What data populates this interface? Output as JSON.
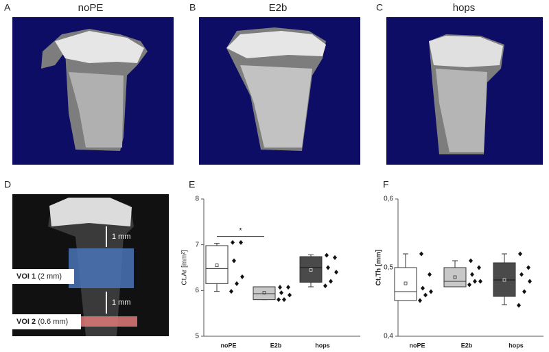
{
  "figure": {
    "images": [
      {
        "letter": "A",
        "title": "noPE"
      },
      {
        "letter": "B",
        "title": "E2b"
      },
      {
        "letter": "C",
        "title": "hops"
      }
    ],
    "panel_d": {
      "letter": "D",
      "spacing_top": "1 mm",
      "spacing_mid": "1 mm",
      "voi1": {
        "name": "VOI 1",
        "size": "(2 mm)"
      },
      "voi2": {
        "name": "VOI 2",
        "size": "(0.6 mm)"
      }
    }
  },
  "chart_data": [
    {
      "type": "box",
      "letter": "E",
      "y_label": "Ct.Ar [mm²]",
      "categories": [
        "noPE",
        "E2b",
        "hops"
      ],
      "colors": [
        "#ffffff",
        "#c8c8c8",
        "#4a4a4a"
      ],
      "ylim": [
        5,
        8
      ],
      "yticks": [
        5,
        6,
        7,
        8
      ],
      "boxes": [
        {
          "min": 5.98,
          "q1": 6.15,
          "median": 6.48,
          "q3": 6.98,
          "max": 7.03,
          "mean": 6.55
        },
        {
          "min": 5.8,
          "q1": 5.8,
          "median": 5.93,
          "q3": 6.08,
          "max": 6.08,
          "mean": 5.95
        },
        {
          "min": 6.08,
          "q1": 6.18,
          "median": 6.5,
          "q3": 6.74,
          "max": 6.78,
          "mean": 6.45
        }
      ],
      "points": [
        [
          7.05,
          7.05,
          6.65,
          6.3,
          6.15,
          5.98
        ],
        [
          6.07,
          6.07,
          5.95,
          5.9,
          5.8,
          5.8
        ],
        [
          6.77,
          6.72,
          6.5,
          6.4,
          6.2,
          6.1
        ]
      ],
      "significance": {
        "label": "*",
        "y": 7.18
      }
    },
    {
      "type": "box",
      "letter": "F",
      "y_label": "Ct.Th [mm]",
      "categories": [
        "noPE",
        "E2b",
        "hops"
      ],
      "colors": [
        "#ffffff",
        "#c8c8c8",
        "#4a4a4a"
      ],
      "ylim": [
        0.4,
        0.6
      ],
      "yticks": [
        {
          "value": 0.4,
          "label": "0,4"
        },
        {
          "value": 0.5,
          "label": "0,5"
        },
        {
          "value": 0.6,
          "label": "0,6"
        }
      ],
      "boxes": [
        {
          "min": 0.452,
          "q1": 0.452,
          "median": 0.465,
          "q3": 0.5,
          "max": 0.52,
          "mean": 0.477
        },
        {
          "min": 0.472,
          "q1": 0.472,
          "median": 0.48,
          "q3": 0.5,
          "max": 0.51,
          "mean": 0.486
        },
        {
          "min": 0.446,
          "q1": 0.458,
          "median": 0.482,
          "q3": 0.507,
          "max": 0.52,
          "mean": 0.482
        }
      ],
      "points": [
        [
          0.52,
          0.49,
          0.47,
          0.465,
          0.46,
          0.452
        ],
        [
          0.51,
          0.5,
          0.49,
          0.48,
          0.48,
          0.475
        ],
        [
          0.52,
          0.5,
          0.49,
          0.48,
          0.465,
          0.445
        ]
      ]
    }
  ]
}
